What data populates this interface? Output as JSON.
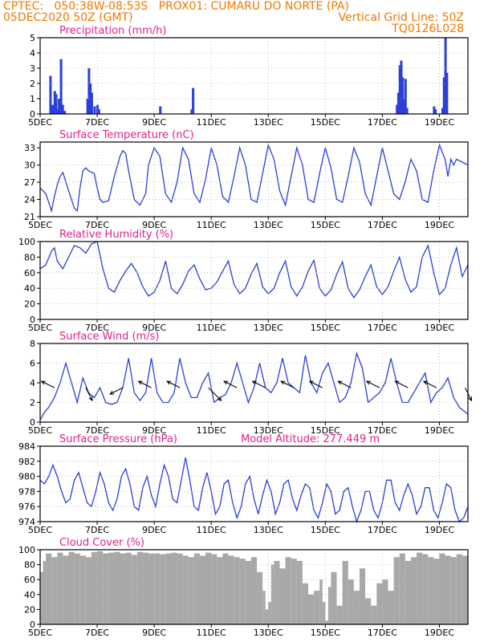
{
  "header": {
    "line1": "CPTEC:   050:38W-08:53S   PROX01: CUMARU DO NORTE (PA)",
    "line2_left": "05DEC2020 50Z (GMT)",
    "line2_right": "Vertical Grid Line: 50Z",
    "line3_right": "TQ0126L028"
  },
  "x_tick_labels": [
    "5DEC",
    "7DEC",
    "9DEC",
    "11DEC",
    "13DEC",
    "15DEC",
    "17DEC",
    "19DEC"
  ],
  "x_tick_days": [
    0,
    2,
    4,
    6,
    8,
    10,
    12,
    14
  ],
  "x_range_days": [
    0,
    15
  ],
  "colors": {
    "title": "#e0208c",
    "series": "#2a3fd8",
    "cloud": "#a8a8a8",
    "header": "#f07800",
    "grid": "#b0b0b0"
  },
  "chart_data": [
    {
      "id": "precip",
      "type": "bar",
      "title": "Precipitation (mm/h)",
      "ylim": [
        0,
        5
      ],
      "yticks": [
        "0",
        "1",
        "2",
        "3",
        "4",
        "5"
      ],
      "x": [
        0.35,
        0.42,
        0.5,
        0.55,
        0.6,
        0.65,
        0.72,
        0.78,
        0.85,
        1.65,
        1.7,
        1.75,
        1.8,
        1.9,
        2.0,
        2.05,
        4.2,
        5.3,
        5.35,
        12.5,
        12.55,
        12.6,
        12.65,
        12.7,
        12.75,
        12.8,
        12.85,
        13.8,
        13.85,
        14.1,
        14.15,
        14.2,
        14.25
      ],
      "values": [
        2.5,
        0.6,
        1.5,
        1.3,
        0.3,
        1.0,
        3.6,
        0.6,
        0.2,
        1.0,
        3.0,
        2.0,
        1.4,
        0.5,
        0.6,
        0.3,
        0.5,
        0.3,
        1.7,
        0.6,
        1.4,
        3.2,
        3.5,
        2.4,
        1.0,
        2.3,
        0.4,
        0.5,
        0.3,
        0.4,
        2.4,
        5.0,
        2.7
      ]
    },
    {
      "id": "temp",
      "type": "line",
      "title": "Surface Temperature (nC)",
      "ylim": [
        21,
        34
      ],
      "yticks": [
        "21",
        "24",
        "27",
        "30",
        "33"
      ],
      "x": [
        0,
        0.2,
        0.3,
        0.4,
        0.5,
        0.6,
        0.7,
        0.8,
        1.0,
        1.2,
        1.3,
        1.4,
        1.5,
        1.6,
        1.7,
        1.9,
        2.0,
        2.1,
        2.2,
        2.4,
        2.6,
        2.8,
        2.9,
        3.0,
        3.1,
        3.3,
        3.5,
        3.7,
        3.8,
        4.0,
        4.2,
        4.4,
        4.6,
        4.8,
        5.0,
        5.2,
        5.4,
        5.6,
        5.8,
        6.0,
        6.2,
        6.4,
        6.6,
        6.8,
        7.0,
        7.2,
        7.4,
        7.6,
        7.8,
        8.0,
        8.2,
        8.4,
        8.6,
        8.8,
        9.0,
        9.2,
        9.4,
        9.6,
        9.8,
        10.0,
        10.2,
        10.4,
        10.6,
        10.8,
        11.0,
        11.2,
        11.4,
        11.6,
        11.8,
        12.0,
        12.2,
        12.4,
        12.6,
        12.8,
        13.0,
        13.2,
        13.4,
        13.6,
        13.8,
        14.0,
        14.2,
        14.3,
        14.4,
        14.5,
        14.6,
        14.8,
        15.0
      ],
      "values": [
        26.0,
        25.0,
        23.5,
        22.0,
        24.5,
        26.5,
        28.0,
        28.7,
        25.5,
        22.5,
        22.0,
        26.0,
        29.0,
        29.5,
        29.0,
        28.5,
        26.0,
        24.0,
        23.5,
        23.8,
        28.0,
        31.5,
        32.5,
        32.0,
        29.0,
        24.0,
        23.0,
        25.0,
        30.0,
        33.0,
        31.5,
        25.0,
        23.5,
        27.0,
        33.0,
        31.0,
        25.0,
        23.5,
        27.5,
        33.0,
        30.0,
        24.5,
        23.5,
        28.0,
        33.0,
        30.0,
        24.0,
        23.5,
        28.5,
        33.5,
        31.0,
        25.5,
        23.0,
        28.0,
        33.0,
        30.0,
        24.0,
        23.5,
        28.5,
        33.0,
        29.5,
        24.0,
        23.5,
        28.0,
        33.0,
        30.5,
        25.0,
        23.0,
        28.0,
        33.0,
        29.0,
        25.0,
        24.0,
        27.0,
        31.0,
        29.0,
        24.0,
        23.5,
        29.0,
        33.5,
        31.0,
        28.0,
        31.0,
        30.0,
        31.0,
        30.5,
        30.0
      ]
    },
    {
      "id": "rh",
      "type": "line",
      "title": "Relative Humidity (%)",
      "ylim": [
        0,
        100
      ],
      "yticks": [
        "0",
        "20",
        "40",
        "60",
        "80",
        "100"
      ],
      "x": [
        0,
        0.2,
        0.4,
        0.5,
        0.6,
        0.8,
        1.0,
        1.2,
        1.4,
        1.6,
        1.8,
        2.0,
        2.2,
        2.4,
        2.6,
        2.8,
        3.0,
        3.2,
        3.4,
        3.6,
        3.8,
        4.0,
        4.2,
        4.4,
        4.6,
        4.8,
        5.0,
        5.2,
        5.4,
        5.6,
        5.8,
        6.0,
        6.2,
        6.4,
        6.6,
        6.8,
        7.0,
        7.2,
        7.4,
        7.6,
        7.8,
        8.0,
        8.2,
        8.4,
        8.6,
        8.8,
        9.0,
        9.2,
        9.4,
        9.6,
        9.8,
        10.0,
        10.2,
        10.4,
        10.6,
        10.8,
        11.0,
        11.2,
        11.4,
        11.6,
        11.8,
        12.0,
        12.2,
        12.4,
        12.6,
        12.8,
        13.0,
        13.2,
        13.4,
        13.6,
        13.8,
        14.0,
        14.2,
        14.4,
        14.6,
        14.8,
        15.0
      ],
      "values": [
        65,
        70,
        88,
        92,
        75,
        65,
        80,
        95,
        92,
        85,
        97,
        100,
        65,
        40,
        35,
        50,
        62,
        72,
        60,
        42,
        30,
        35,
        50,
        75,
        40,
        33,
        45,
        62,
        70,
        52,
        38,
        40,
        48,
        62,
        75,
        45,
        33,
        40,
        58,
        72,
        42,
        33,
        40,
        60,
        75,
        42,
        30,
        42,
        62,
        76,
        40,
        30,
        38,
        58,
        74,
        40,
        28,
        38,
        55,
        70,
        42,
        32,
        42,
        62,
        80,
        52,
        35,
        42,
        80,
        95,
        60,
        32,
        40,
        70,
        92,
        55,
        70
      ]
    },
    {
      "id": "wind",
      "type": "line",
      "title": "Surface Wind (m/s)",
      "ylim": [
        0,
        8
      ],
      "yticks": [
        "0",
        "2",
        "4",
        "6",
        "8"
      ],
      "x": [
        0,
        0.15,
        0.3,
        0.5,
        0.7,
        0.9,
        1.1,
        1.3,
        1.5,
        1.7,
        1.9,
        2.1,
        2.3,
        2.5,
        2.7,
        2.9,
        3.1,
        3.3,
        3.5,
        3.7,
        3.9,
        4.1,
        4.3,
        4.5,
        4.7,
        4.9,
        5.1,
        5.3,
        5.5,
        5.7,
        5.9,
        6.1,
        6.3,
        6.5,
        6.7,
        6.9,
        7.1,
        7.3,
        7.5,
        7.7,
        7.9,
        8.1,
        8.3,
        8.5,
        8.7,
        8.9,
        9.1,
        9.3,
        9.5,
        9.7,
        9.9,
        10.1,
        10.3,
        10.5,
        10.7,
        10.9,
        11.1,
        11.3,
        11.5,
        11.7,
        11.9,
        12.1,
        12.3,
        12.5,
        12.7,
        12.9,
        13.1,
        13.3,
        13.5,
        13.7,
        13.9,
        14.1,
        14.3,
        14.5,
        14.7,
        15.0
      ],
      "values": [
        0.2,
        1.0,
        1.5,
        2.5,
        4.0,
        6.0,
        4.0,
        2.0,
        4.5,
        3.0,
        2.5,
        3.5,
        2.0,
        1.8,
        2.0,
        3.5,
        6.5,
        3.0,
        2.2,
        3.0,
        6.5,
        3.0,
        2.0,
        2.0,
        3.0,
        6.5,
        4.0,
        2.5,
        2.5,
        4.0,
        5.0,
        2.0,
        2.5,
        2.8,
        4.0,
        6.0,
        4.0,
        2.0,
        3.5,
        6.0,
        3.5,
        3.0,
        4.0,
        6.5,
        4.0,
        3.5,
        3.0,
        6.8,
        4.0,
        3.0,
        5.0,
        6.0,
        4.0,
        2.0,
        2.5,
        4.0,
        7.0,
        5.5,
        2.0,
        2.5,
        3.0,
        4.0,
        6.5,
        4.0,
        2.0,
        2.0,
        3.0,
        4.0,
        5.0,
        2.0,
        3.0,
        3.5,
        4.5,
        2.5,
        1.5,
        0.8
      ]
    },
    {
      "id": "pressure",
      "type": "line",
      "title": "Surface Pressure (hPa)",
      "annotation": "Model Altitude: 277.449 m",
      "ylim": [
        974,
        984
      ],
      "yticks": [
        "974",
        "976",
        "978",
        "980",
        "982",
        "984"
      ],
      "x": [
        0,
        0.15,
        0.3,
        0.45,
        0.6,
        0.75,
        0.9,
        1.05,
        1.2,
        1.35,
        1.5,
        1.65,
        1.8,
        1.95,
        2.1,
        2.25,
        2.4,
        2.55,
        2.7,
        2.85,
        3.0,
        3.15,
        3.3,
        3.45,
        3.6,
        3.75,
        3.9,
        4.05,
        4.2,
        4.35,
        4.5,
        4.65,
        4.8,
        4.95,
        5.1,
        5.25,
        5.4,
        5.55,
        5.7,
        5.85,
        6.0,
        6.15,
        6.3,
        6.45,
        6.6,
        6.75,
        6.9,
        7.05,
        7.2,
        7.35,
        7.5,
        7.65,
        7.8,
        7.95,
        8.1,
        8.25,
        8.4,
        8.55,
        8.7,
        8.85,
        9.0,
        9.15,
        9.3,
        9.45,
        9.6,
        9.75,
        9.9,
        10.05,
        10.2,
        10.35,
        10.5,
        10.65,
        10.8,
        10.95,
        11.1,
        11.25,
        11.4,
        11.55,
        11.7,
        11.85,
        12.0,
        12.15,
        12.3,
        12.45,
        12.6,
        12.75,
        12.9,
        13.05,
        13.2,
        13.35,
        13.5,
        13.65,
        13.8,
        13.95,
        14.1,
        14.25,
        14.4,
        14.55,
        14.7,
        14.85,
        15.0
      ],
      "values": [
        979.5,
        979.0,
        980.0,
        981.5,
        980.0,
        978.0,
        976.5,
        977.0,
        979.5,
        980.5,
        978.5,
        976.5,
        976.0,
        978.0,
        980.5,
        979.0,
        976.5,
        975.5,
        977.0,
        980.0,
        981.0,
        979.0,
        976.0,
        975.5,
        978.5,
        980.0,
        977.5,
        976.0,
        979.0,
        981.5,
        980.0,
        977.0,
        976.5,
        979.5,
        982.5,
        979.5,
        976.0,
        975.5,
        978.5,
        980.5,
        978.0,
        975.0,
        976.0,
        979.0,
        979.5,
        976.5,
        974.5,
        976.0,
        979.0,
        980.0,
        977.0,
        975.0,
        977.5,
        979.5,
        978.0,
        975.0,
        976.5,
        979.0,
        979.5,
        977.0,
        975.5,
        977.5,
        979.0,
        978.5,
        975.5,
        974.5,
        976.5,
        979.0,
        978.0,
        975.0,
        975.5,
        978.0,
        978.5,
        976.0,
        974.0,
        975.5,
        978.0,
        978.0,
        975.5,
        974.5,
        976.5,
        979.5,
        979.5,
        976.5,
        975.5,
        977.5,
        979.0,
        977.5,
        975.0,
        976.0,
        978.5,
        978.5,
        975.5,
        974.5,
        976.5,
        979.0,
        978.5,
        975.5,
        974.0,
        974.5,
        976.0
      ]
    },
    {
      "id": "cloud",
      "type": "area",
      "title": "Cloud Cover (%)",
      "ylim": [
        0,
        100
      ],
      "yticks": [
        "0",
        "20",
        "40",
        "60",
        "80",
        "100"
      ],
      "x": [
        0,
        0.1,
        0.2,
        0.4,
        0.6,
        0.8,
        1.0,
        1.2,
        1.4,
        1.6,
        1.8,
        2.0,
        2.2,
        2.4,
        2.6,
        2.8,
        3.0,
        3.2,
        3.4,
        3.6,
        3.8,
        4.0,
        4.2,
        4.4,
        4.6,
        4.8,
        5.0,
        5.2,
        5.4,
        5.6,
        5.8,
        6.0,
        6.2,
        6.4,
        6.6,
        6.8,
        7.0,
        7.2,
        7.4,
        7.6,
        7.8,
        7.9,
        8.0,
        8.1,
        8.2,
        8.4,
        8.6,
        8.8,
        9.0,
        9.2,
        9.4,
        9.6,
        9.8,
        9.9,
        10.0,
        10.1,
        10.2,
        10.4,
        10.6,
        10.8,
        11.0,
        11.2,
        11.4,
        11.6,
        11.8,
        12.0,
        12.2,
        12.4,
        12.6,
        12.8,
        13.0,
        13.2,
        13.4,
        13.6,
        13.8,
        14.0,
        14.2,
        14.4,
        14.6,
        14.8,
        15.0
      ],
      "values": [
        70,
        85,
        95,
        90,
        96,
        92,
        97,
        95,
        92,
        90,
        97,
        98,
        95,
        96,
        97,
        95,
        96,
        93,
        97,
        96,
        95,
        95,
        94,
        95,
        96,
        95,
        92,
        90,
        95,
        92,
        96,
        94,
        90,
        95,
        92,
        90,
        88,
        85,
        90,
        70,
        45,
        20,
        30,
        80,
        85,
        75,
        90,
        88,
        85,
        55,
        40,
        45,
        60,
        30,
        5,
        50,
        70,
        25,
        85,
        60,
        45,
        75,
        35,
        25,
        55,
        60,
        45,
        90,
        95,
        85,
        90,
        96,
        94,
        90,
        88,
        95,
        92,
        90,
        94,
        92,
        90
      ]
    }
  ],
  "wind_vectors": {
    "note_days": [
      0.5,
      1.6,
      2.9,
      3.9,
      4.9,
      5.9,
      6.9,
      7.9,
      8.9,
      9.9,
      10.9,
      11.9,
      12.9,
      13.9,
      14.9
    ],
    "u_ms": [
      -2,
      1,
      -2,
      -2,
      -2,
      2,
      -2,
      -2,
      -2,
      -2,
      -2,
      -2,
      -2,
      -2,
      1
    ],
    "v_ms": [
      1,
      -2,
      -1,
      1,
      1,
      -2,
      1,
      1,
      1,
      1,
      1,
      1,
      1,
      1,
      -2
    ]
  }
}
